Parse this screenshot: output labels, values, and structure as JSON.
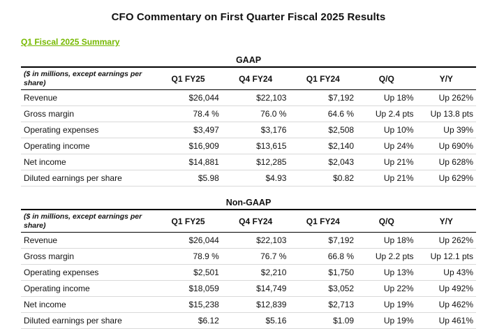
{
  "page": {
    "title": "CFO Commentary on First Quarter Fiscal 2025 Results",
    "summary_link": "Q1 Fiscal 2025 Summary",
    "accent_color": "#76b900"
  },
  "tables": [
    {
      "title": "GAAP",
      "unit_note": "($ in millions, except earnings per share)",
      "columns": [
        "Q1 FY25",
        "Q4 FY24",
        "Q1 FY24",
        "Q/Q",
        "Y/Y"
      ],
      "rows": [
        {
          "label": "Revenue",
          "values": [
            "$26,044",
            "$22,103",
            "$7,192",
            "Up 18%",
            "Up 262%"
          ]
        },
        {
          "label": "Gross margin",
          "values": [
            "78.4 %",
            "76.0 %",
            "64.6 %",
            "Up 2.4 pts",
            "Up 13.8 pts"
          ]
        },
        {
          "label": "Operating expenses",
          "values": [
            "$3,497",
            "$3,176",
            "$2,508",
            "Up 10%",
            "Up 39%"
          ]
        },
        {
          "label": "Operating income",
          "values": [
            "$16,909",
            "$13,615",
            "$2,140",
            "Up 24%",
            "Up 690%"
          ]
        },
        {
          "label": "Net income",
          "values": [
            "$14,881",
            "$12,285",
            "$2,043",
            "Up 21%",
            "Up 628%"
          ]
        },
        {
          "label": "Diluted earnings per share",
          "values": [
            "$5.98",
            "$4.93",
            "$0.82",
            "Up 21%",
            "Up 629%"
          ]
        }
      ]
    },
    {
      "title": "Non-GAAP",
      "unit_note": "($ in millions, except earnings per share)",
      "columns": [
        "Q1 FY25",
        "Q4 FY24",
        "Q1 FY24",
        "Q/Q",
        "Y/Y"
      ],
      "rows": [
        {
          "label": "Revenue",
          "values": [
            "$26,044",
            "$22,103",
            "$7,192",
            "Up 18%",
            "Up 262%"
          ]
        },
        {
          "label": "Gross margin",
          "values": [
            "78.9 %",
            "76.7 %",
            "66.8 %",
            "Up 2.2 pts",
            "Up 12.1 pts"
          ]
        },
        {
          "label": "Operating expenses",
          "values": [
            "$2,501",
            "$2,210",
            "$1,750",
            "Up 13%",
            "Up 43%"
          ]
        },
        {
          "label": "Operating income",
          "values": [
            "$18,059",
            "$14,749",
            "$3,052",
            "Up 22%",
            "Up 492%"
          ]
        },
        {
          "label": "Net income",
          "values": [
            "$15,238",
            "$12,839",
            "$2,713",
            "Up 19%",
            "Up 462%"
          ]
        },
        {
          "label": "Diluted earnings per share",
          "values": [
            "$6.12",
            "$5.16",
            "$1.09",
            "Up 19%",
            "Up 461%"
          ]
        }
      ]
    }
  ]
}
